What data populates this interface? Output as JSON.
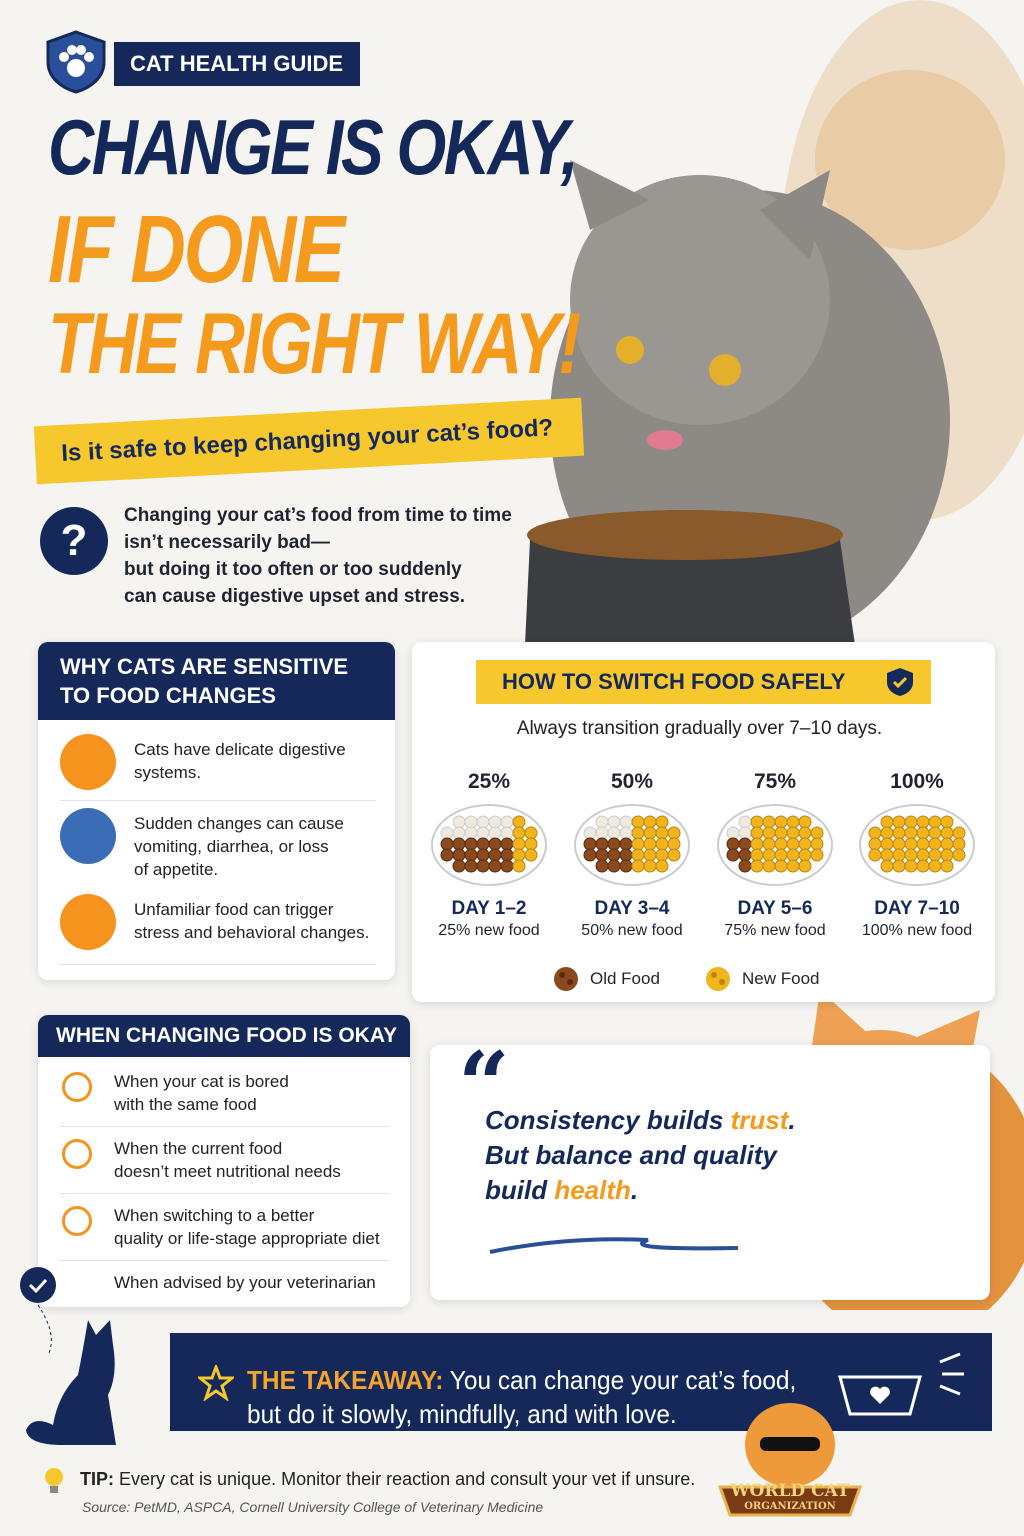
{
  "header": {
    "badge": "CAT HEALTH GUIDE",
    "title_lines": [
      "CHANGE IS OKAY,",
      "IF DONE",
      "THE RIGHT WAY!"
    ],
    "subtitle": "Is it safe to keep changing your cat’s food?"
  },
  "intro": {
    "icon": "?",
    "lines": [
      "Changing your cat’s food from time to time",
      "isn’t necessarily bad—",
      "but doing it too often or too suddenly",
      "can cause digestive upset and stress."
    ]
  },
  "sensitive": {
    "title_lines": [
      "WHY CATS ARE SENSITIVE",
      "TO FOOD CHANGES"
    ],
    "items": [
      [
        "Cats have delicate digestive",
        "systems."
      ],
      [
        "Sudden changes can cause",
        "vomiting, diarrhea, or loss",
        "of appetite."
      ],
      [
        "Unfamiliar food can trigger",
        "stress and behavioral changes."
      ]
    ]
  },
  "switch": {
    "title": "HOW TO SWITCH FOOD SAFELY",
    "subtitle": "Always transition gradually over 7–10 days.",
    "steps": [
      {
        "percent": "25%",
        "day": "DAY 1–2",
        "label": "25% new food"
      },
      {
        "percent": "50%",
        "day": "DAY 3–4",
        "label": "50% new food"
      },
      {
        "percent": "75%",
        "day": "DAY 5–6",
        "label": "75% new food"
      },
      {
        "percent": "100%",
        "day": "DAY 7–10",
        "label": "100% new food"
      }
    ],
    "legend": [
      "Old Food",
      "New Food"
    ]
  },
  "okay": {
    "title": "WHEN CHANGING FOOD IS OKAY",
    "items": [
      [
        "When your cat is bored",
        "with the same food"
      ],
      [
        "When the current food",
        "doesn’t meet nutritional needs"
      ],
      [
        "When switching to a better",
        "quality or life-stage appropriate diet"
      ],
      [
        "When advised by your veterinarian"
      ]
    ]
  },
  "quote": {
    "mark": "“",
    "line1": [
      "Consistency builds ",
      "trust",
      "."
    ],
    "line2": "But balance and quality",
    "line3": [
      "build ",
      "health",
      "."
    ]
  },
  "takeaway": {
    "label": "THE TAKEAWAY:",
    "lines": [
      "You can change your cat’s food,",
      "but do it slowly, mindfully, and with love."
    ]
  },
  "tip": {
    "label": "TIP:",
    "text": "Every cat is unique. Monitor their reaction and consult your vet if unsure."
  },
  "source": "Source: PetMD, ASPCA, Cornell University College of Veterinary Medicine",
  "logo": [
    "WORLD CAT",
    "ORGANIZATION"
  ]
}
